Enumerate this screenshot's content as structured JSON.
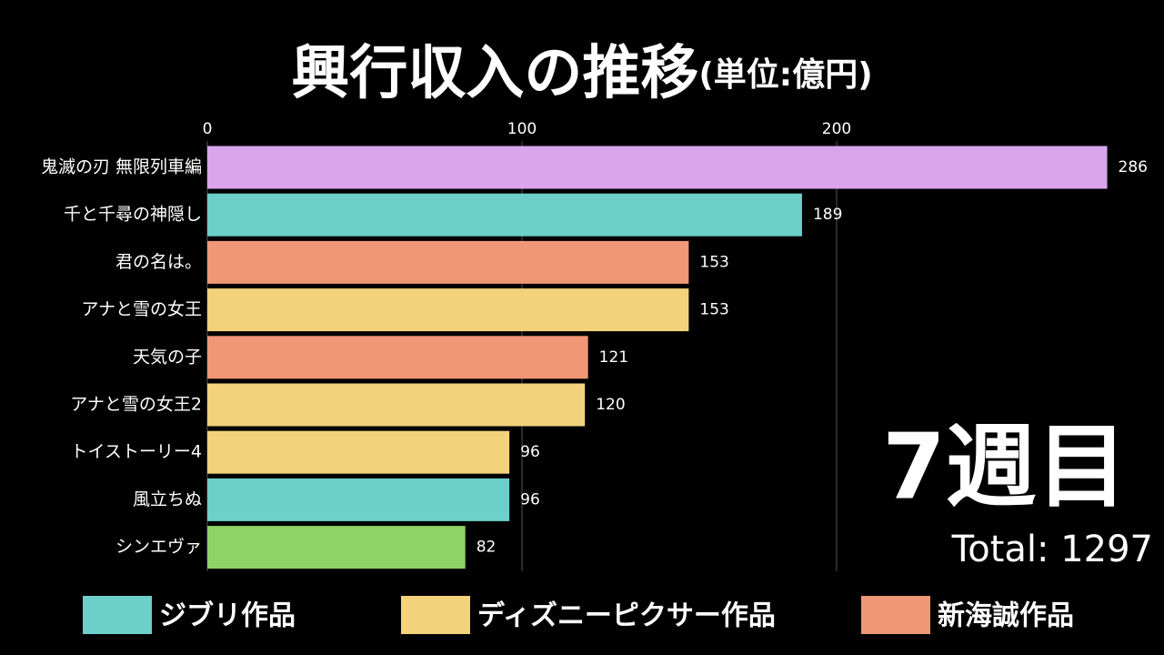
{
  "chart_data": {
    "type": "bar",
    "orientation": "horizontal",
    "title": "興行収入の推移",
    "subtitle": "(単位:億円)",
    "categories": [
      "鬼滅の刃 無限列車編",
      "千と千尋の神隠し",
      "君の名は。",
      "アナと雪の女王",
      "天気の子",
      "アナと雪の女王2",
      "トイストーリー4",
      "風立ちぬ",
      "シンエヴァ"
    ],
    "values": [
      286,
      189,
      153,
      153,
      121,
      120,
      96,
      96,
      82
    ],
    "colors": [
      "#d9a6ec",
      "#6ccfc9",
      "#ef9777",
      "#f2d27a",
      "#ef9777",
      "#f2d27a",
      "#f2d27a",
      "#6ccfc9",
      "#8dd365"
    ],
    "xlim": [
      0,
      300
    ],
    "xticks": [
      0,
      100,
      200
    ],
    "grid": true,
    "legend": [
      {
        "name": "ジブリ作品",
        "color": "#6ccfc9"
      },
      {
        "name": "ディズニーピクサー作品",
        "color": "#f2d27a"
      },
      {
        "name": "新海誠作品",
        "color": "#ef9777"
      }
    ],
    "week_label": "7週目",
    "total_label": "Total: 1297"
  }
}
